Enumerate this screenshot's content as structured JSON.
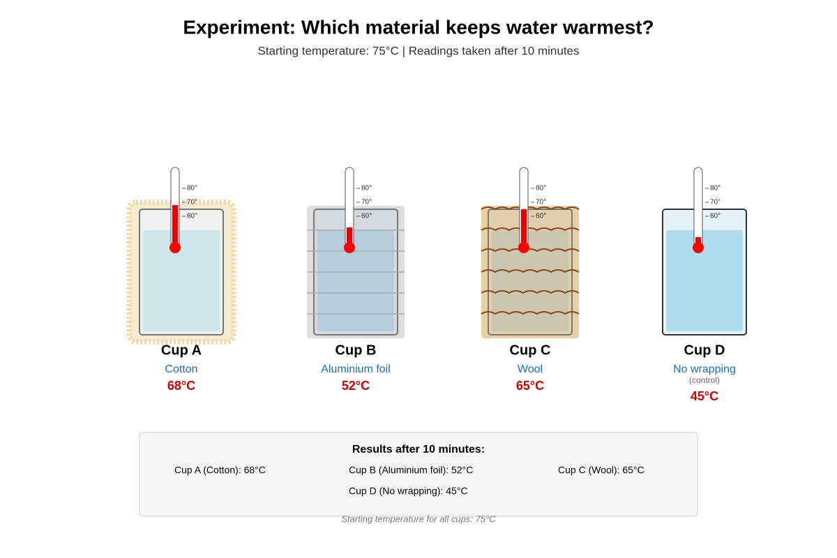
{
  "header": {
    "title": "Experiment: Which material keeps water warmest?",
    "subtitle": "Starting temperature: 75°C | Readings taken after 10 minutes"
  },
  "thermometer": {
    "ticks": [
      {
        "value": 80,
        "label": "80°"
      },
      {
        "value": 70,
        "label": "70°"
      },
      {
        "value": 60,
        "label": "60°"
      }
    ]
  },
  "cups": [
    {
      "name": "Cup A",
      "material": "Cotton",
      "temperature": 68,
      "temperature_label": "68°C"
    },
    {
      "name": "Cup B",
      "material": "Aluminium foil",
      "temperature": 52,
      "temperature_label": "52°C"
    },
    {
      "name": "Cup C",
      "material": "Wool",
      "temperature": 65,
      "temperature_label": "65°C"
    },
    {
      "name": "Cup D",
      "material": "No wrapping",
      "note": "(control)",
      "temperature": 45,
      "temperature_label": "45°C"
    }
  ],
  "results": {
    "title": "Results after 10 minutes:",
    "items": [
      "Cup A (Cotton): 68°C",
      "Cup B (Aluminium foil): 52°C",
      "Cup C (Wool): 65°C",
      "Cup D (No wrapping): 45°C"
    ]
  },
  "footnote": "Starting temperature for all cups: 75°C"
}
